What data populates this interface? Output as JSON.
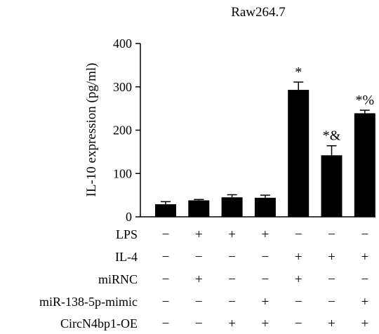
{
  "chart_data": {
    "type": "bar",
    "title": "Raw264.7",
    "ylabel": "IL-10 expression (pg/ml)",
    "xlabel": "",
    "ylim": [
      0,
      400
    ],
    "yticks": [
      0,
      100,
      200,
      300,
      400
    ],
    "grid": false,
    "legend": "none",
    "bar_color": "#000000",
    "groups": 7,
    "values": [
      29,
      38,
      45,
      44,
      293,
      142,
      239
    ],
    "errors": [
      6,
      2,
      6,
      6,
      18,
      22,
      7
    ],
    "annotations": [
      "",
      "",
      "",
      "",
      "*",
      "*&",
      "*%"
    ],
    "conditions": [
      {
        "label": "LPS",
        "marks": [
          "−",
          "+",
          "+",
          "+",
          "−",
          "−",
          "−"
        ]
      },
      {
        "label": "IL-4",
        "marks": [
          "−",
          "−",
          "−",
          "−",
          "+",
          "+",
          "+"
        ]
      },
      {
        "label": "miRNC",
        "marks": [
          "−",
          "+",
          "−",
          "−",
          "+",
          "−",
          "−"
        ]
      },
      {
        "label": "miR-138-5p-mimic",
        "marks": [
          "−",
          "−",
          "−",
          "+",
          "−",
          "−",
          "+"
        ]
      },
      {
        "label": "CircN4bp1-OE",
        "marks": [
          "−",
          "−",
          "+",
          "+",
          "−",
          "+",
          "+"
        ]
      }
    ]
  }
}
